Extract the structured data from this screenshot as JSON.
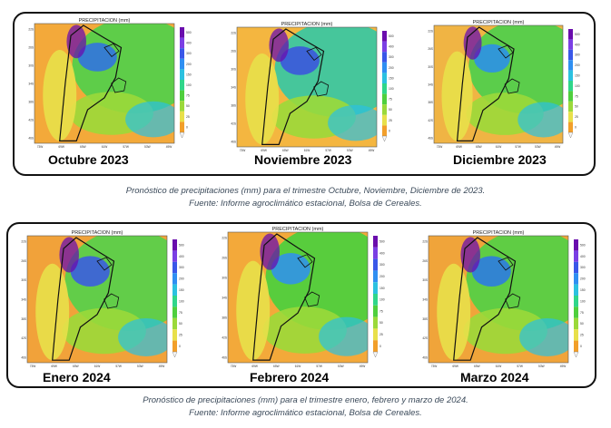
{
  "map_title": "PRECIPITACION (mm)",
  "legend_ticks": [
    "500",
    "400",
    "300",
    "200",
    "150",
    "100",
    "75",
    "50",
    "25",
    "0"
  ],
  "legend_colors": [
    "#6a0dad",
    "#7b3fe4",
    "#3a57e8",
    "#2f8ff2",
    "#2bc1e0",
    "#2fd68a",
    "#4fcf3d",
    "#9bd93a",
    "#e8e04a",
    "#f29f2a"
  ],
  "lon_ticks": [
    "73W",
    "69W",
    "65W",
    "61W",
    "57W",
    "53W",
    "49W"
  ],
  "lat_ticks": [
    "22S",
    "26S",
    "30S",
    "34S",
    "38S",
    "42S",
    "46S"
  ],
  "top_row": {
    "maps": [
      {
        "month": "Octubre 2023"
      },
      {
        "month": "Noviembre 2023"
      },
      {
        "month": "Diciembre 2023"
      }
    ],
    "caption_line1": "Pronóstico de precipitaciones (mm) para el trimestre Octubre, Noviembre, Diciembre de 2023.",
    "caption_line2": "Fuente: Informe agroclimático estacional, Bolsa de Cereales."
  },
  "bottom_row": {
    "maps": [
      {
        "month": "Enero 2024"
      },
      {
        "month": "Febrero 2024"
      },
      {
        "month": "Marzo 2024"
      }
    ],
    "caption_line1": "Pronóstico de precipitaciones (mm) para el trimestre enero, febrero y marzo de 2024.",
    "caption_line2": "Fuente: Informe agroclimático estacional, Bolsa de Cereales."
  }
}
